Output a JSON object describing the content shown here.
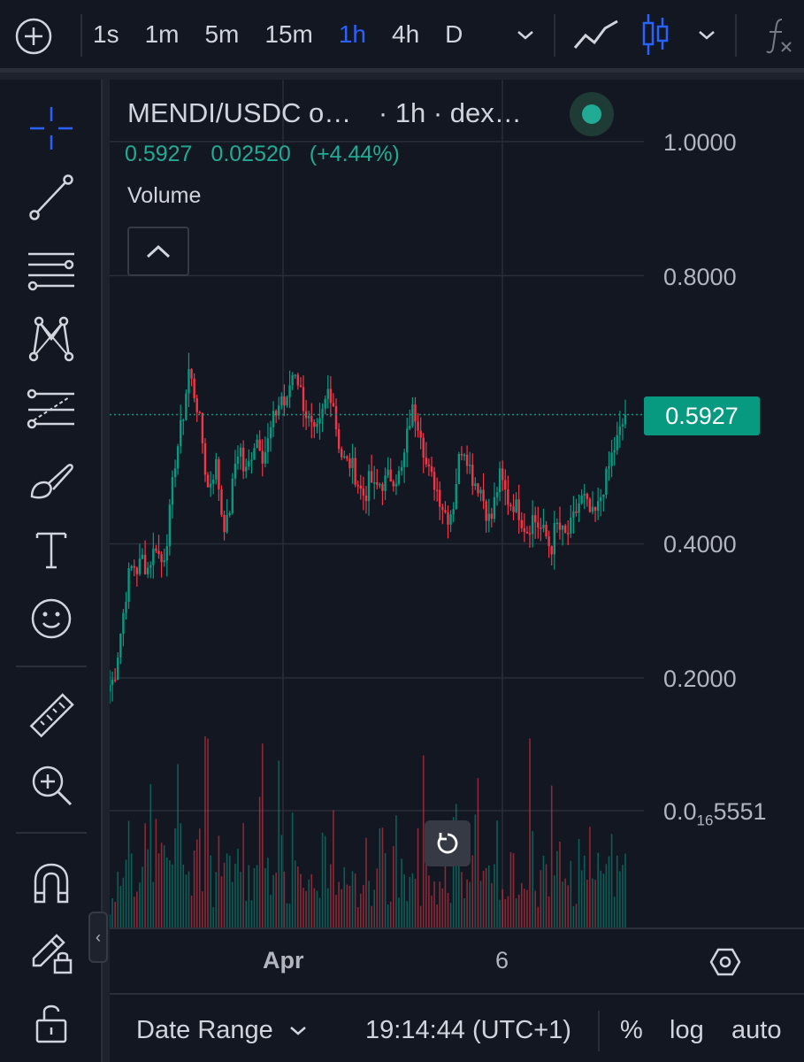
{
  "toolbar": {
    "intervals": [
      {
        "label": "1s",
        "active": false
      },
      {
        "label": "1m",
        "active": false
      },
      {
        "label": "5m",
        "active": false
      },
      {
        "label": "15m",
        "active": false
      },
      {
        "label": "1h",
        "active": true
      },
      {
        "label": "4h",
        "active": false
      },
      {
        "label": "D",
        "active": false
      }
    ],
    "icons": [
      "add-symbol-icon",
      "interval-dropdown-icon",
      "line-chart-icon",
      "candles-icon",
      "chart-type-dropdown-icon",
      "indicators-icon"
    ],
    "active_color": "#2962ff"
  },
  "drawing_tools": [
    "crosshair-icon",
    "trend-line-icon",
    "horizontal-lines-icon",
    "pattern-icon",
    "fib-retracement-icon",
    "brush-icon",
    "text-icon",
    "emoji-icon",
    "ruler-icon",
    "zoom-in-icon",
    "magnet-icon",
    "lock-drawings-icon",
    "unlock-icon",
    "collapse-toolbar-icon"
  ],
  "legend": {
    "symbol": "MENDI/USDC o…",
    "interval_source": "· 1h · dex…",
    "price": "0.5927",
    "change": "0.02520",
    "change_pct": "(+4.44%)",
    "volume_label": "Volume",
    "status_color": "#22ab94"
  },
  "price_axis": {
    "labels": [
      "1.0000",
      "0.8000",
      "0.4000",
      "0.2000"
    ],
    "bottom_label_prefix": "0.0",
    "bottom_label_sub": "16",
    "bottom_label_suffix": "5551",
    "current_price_tag": "0.5927",
    "tag_color": "#089981"
  },
  "time_axis": {
    "labels": [
      "Apr",
      "6"
    ]
  },
  "chart_data": {
    "type": "candlestick",
    "symbol": "MENDI/USDC",
    "interval": "1h",
    "ylim": [
      0.18,
      1.0
    ],
    "y_ticks": [
      0.2,
      0.4,
      0.8,
      1.0
    ],
    "current_price": 0.5927,
    "up_color": "#089981",
    "down_color": "#f23645",
    "close_path": [
      0.19,
      0.2,
      0.25,
      0.3,
      0.35,
      0.37,
      0.36,
      0.38,
      0.36,
      0.38,
      0.4,
      0.37,
      0.39,
      0.45,
      0.52,
      0.56,
      0.6,
      0.66,
      0.63,
      0.6,
      0.55,
      0.48,
      0.5,
      0.52,
      0.45,
      0.42,
      0.46,
      0.52,
      0.55,
      0.5,
      0.52,
      0.55,
      0.56,
      0.53,
      0.55,
      0.58,
      0.6,
      0.62,
      0.6,
      0.65,
      0.66,
      0.63,
      0.6,
      0.58,
      0.56,
      0.57,
      0.6,
      0.63,
      0.62,
      0.56,
      0.53,
      0.52,
      0.52,
      0.5,
      0.48,
      0.47,
      0.5,
      0.48,
      0.49,
      0.49,
      0.5,
      0.5,
      0.5,
      0.51,
      0.56,
      0.6,
      0.59,
      0.57,
      0.52,
      0.5,
      0.49,
      0.47,
      0.45,
      0.44,
      0.46,
      0.52,
      0.55,
      0.53,
      0.5,
      0.49,
      0.48,
      0.45,
      0.43,
      0.47,
      0.5,
      0.48,
      0.46,
      0.46,
      0.45,
      0.43,
      0.42,
      0.44,
      0.43,
      0.42,
      0.41,
      0.39,
      0.43,
      0.42,
      0.41,
      0.42,
      0.44,
      0.46,
      0.47,
      0.45,
      0.44,
      0.45,
      0.48,
      0.5,
      0.53,
      0.55,
      0.57,
      0.59
    ],
    "volume_profile": [
      2,
      3,
      5,
      4,
      6,
      3,
      4,
      8,
      5,
      4,
      7,
      6,
      5,
      4,
      9,
      6,
      5,
      4,
      6,
      8,
      5,
      4,
      3,
      6,
      5,
      7,
      4,
      5,
      6,
      3,
      4,
      5,
      8,
      6,
      4,
      5,
      7,
      5,
      4,
      6,
      5,
      4,
      6,
      3,
      4,
      5,
      6,
      4,
      3,
      5,
      4,
      6,
      5,
      3,
      4,
      5,
      3,
      4,
      6,
      5,
      3,
      7,
      4,
      5,
      3,
      4,
      6,
      3,
      5,
      4,
      3,
      4,
      5,
      3,
      6,
      4,
      3,
      5,
      8,
      4,
      3,
      4,
      5,
      6,
      3,
      4,
      5,
      4,
      3,
      5,
      4,
      6,
      3,
      4,
      5,
      3,
      4,
      5,
      6,
      4,
      3,
      5,
      4,
      6,
      5,
      4,
      3,
      5,
      6,
      4,
      5,
      6
    ]
  },
  "bottom_bar": {
    "date_range": "Date Range",
    "clock": "19:14:44 (UTC+1)",
    "percent": "%",
    "log": "log",
    "auto": "auto"
  }
}
